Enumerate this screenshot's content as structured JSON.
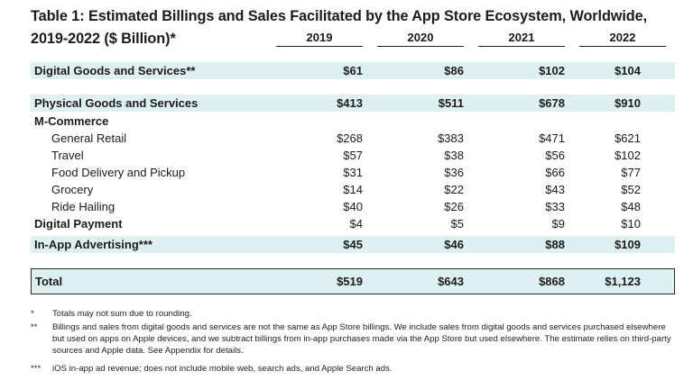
{
  "title_line1": "Table 1: Estimated Billings and Sales Facilitated by the App Store Ecosystem, Worldwide,",
  "title_line2": "2019-2022 ($ Billion)*",
  "years": [
    "2019",
    "2020",
    "2021",
    "2022"
  ],
  "rows": [
    {
      "label": "Digital Goods and Services**",
      "values": [
        "$61",
        "$86",
        "$102",
        "$104"
      ]
    },
    {
      "label": "Physical Goods and Services",
      "values": [
        "$413",
        "$511",
        "$678",
        "$910"
      ]
    },
    {
      "label": "M-Commerce",
      "values": [
        "",
        "",
        "",
        ""
      ]
    },
    {
      "label": "General Retail",
      "values": [
        "$268",
        "$383",
        "$471",
        "$621"
      ]
    },
    {
      "label": "Travel",
      "values": [
        "$57",
        "$38",
        "$56",
        "$102"
      ]
    },
    {
      "label": "Food Delivery and Pickup",
      "values": [
        "$31",
        "$36",
        "$66",
        "$77"
      ]
    },
    {
      "label": "Grocery",
      "values": [
        "$14",
        "$22",
        "$43",
        "$52"
      ]
    },
    {
      "label": "Ride Hailing",
      "values": [
        "$40",
        "$26",
        "$33",
        "$48"
      ]
    },
    {
      "label": "Digital Payment",
      "values": [
        "$4",
        "$5",
        "$9",
        "$10"
      ]
    },
    {
      "label": "In-App Advertising***",
      "values": [
        "$45",
        "$46",
        "$88",
        "$109"
      ]
    }
  ],
  "total": {
    "label": "Total",
    "values": [
      "$519",
      "$643",
      "$868",
      "$1,123"
    ]
  },
  "notes": [
    {
      "mark": "*",
      "text": "Totals may not sum due to rounding."
    },
    {
      "mark": "**",
      "text": "Billings and sales from digital goods and services are not the same as App Store billings. We include sales from digital goods and services purchased elsewhere but used on apps on Apple devices, and we subtract billings from in-app purchases made via the App Store but used elsewhere. The estimate relies on third-party sources and Apple data. See Appendix for details."
    },
    {
      "mark": "***",
      "text": "iOS in-app ad revenue; does not include mobile web, search ads, and Apple Search ads."
    }
  ]
}
